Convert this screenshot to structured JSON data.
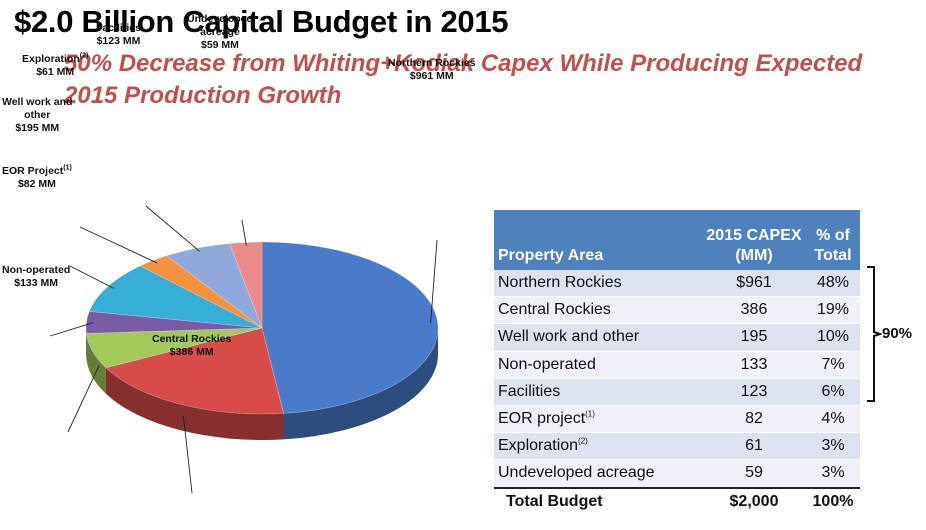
{
  "header": {
    "title": "$2.0 Billion Capital Budget in 2015",
    "subtitle": "50% Decrease from Whiting+Kodiak Capex While Producing Expected 2015 Production Growth"
  },
  "chart_data": {
    "type": "pie",
    "title": "",
    "slices": [
      {
        "name": "Northern Rockies",
        "value": 961,
        "label_value": "$961 MM",
        "color": "#4a7bc8"
      },
      {
        "name": "Central Rockies",
        "value": 386,
        "label_value": "$386 MM",
        "color": "#d74b4b"
      },
      {
        "name": "Non-operated",
        "value": 133,
        "label_value": "$133 MM",
        "color": "#a3c95a"
      },
      {
        "name": "EOR Project",
        "footnote": "(1)",
        "value": 82,
        "label_value": "$82 MM",
        "color": "#7a5ba6"
      },
      {
        "name": "Well work and other",
        "value": 195,
        "label_value": "$195 MM",
        "color": "#36aed6"
      },
      {
        "name": "Exploration",
        "footnote": "(2)",
        "value": 61,
        "label_value": "$61 MM",
        "color": "#f5923e"
      },
      {
        "name": "Facilities",
        "value": 123,
        "label_value": "$123 MM",
        "color": "#8fa9dd"
      },
      {
        "name": "Undeveloped acreage",
        "display_name": "Undeveloped acreage",
        "value": 59,
        "label_value": "$59 MM",
        "color": "#e98c8c"
      }
    ]
  },
  "labels": {
    "northern": {
      "name": "Northern Rockies",
      "value": "$961 MM"
    },
    "central": {
      "name": "Central Rockies",
      "value": "$386 MM"
    },
    "nonop": {
      "name": "Non-operated",
      "value": "$133 MM"
    },
    "eor": {
      "name": "EOR Project",
      "sup": "(1)",
      "value": "$82 MM"
    },
    "wellwork": {
      "name1": "Well work and",
      "name2": "other",
      "value": "$195 MM"
    },
    "exploration": {
      "name": "Exploration",
      "sup": "(2)",
      "value": "$61 MM"
    },
    "facilities": {
      "name": "Facilities",
      "value": "$123 MM"
    },
    "undeveloped": {
      "name1": "Undeveloped",
      "name2": "acreage",
      "value": "$59 MM"
    }
  },
  "table": {
    "headers": {
      "area": "Property Area",
      "capex": "2015 CAPEX (MM)",
      "pct": "% of Total"
    },
    "rows": [
      {
        "area": "Northern Rockies",
        "capex": "$961",
        "pct": "48%"
      },
      {
        "area": "Central Rockies",
        "capex": "386",
        "pct": "19%"
      },
      {
        "area": "Well work and other",
        "capex": "195",
        "pct": "10%"
      },
      {
        "area": "Non-operated",
        "capex": "133",
        "pct": "7%"
      },
      {
        "area": "Facilities",
        "capex": "123",
        "pct": "6%"
      },
      {
        "area": "EOR project",
        "sup": "(1)",
        "capex": "82",
        "pct": "4%"
      },
      {
        "area": "Exploration",
        "sup": "(2)",
        "capex": "61",
        "pct": "3%"
      },
      {
        "area": "Undeveloped acreage",
        "capex": "59",
        "pct": "3%"
      }
    ],
    "total": {
      "area": "Total Budget",
      "capex": "$2,000",
      "pct": "100%"
    },
    "bracket_label": "90%"
  }
}
